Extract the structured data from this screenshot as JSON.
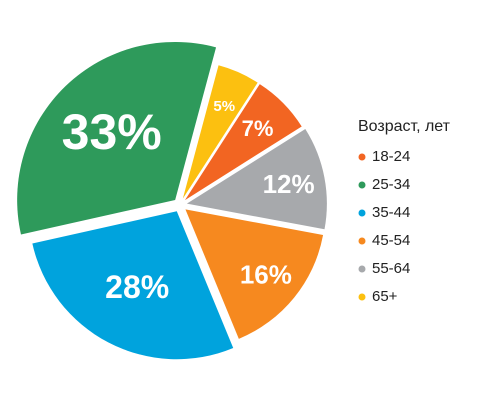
{
  "chart_data": {
    "type": "pie",
    "legend_title": "Возраст, лет",
    "categories": [
      "18-24",
      "25-34",
      "35-44",
      "45-54",
      "55-64",
      "65+"
    ],
    "values": [
      7,
      33,
      28,
      16,
      12,
      5
    ],
    "value_labels": [
      "7%",
      "33%",
      "28%",
      "16%",
      "12%",
      "5%"
    ],
    "colors": [
      "#f26522",
      "#2e9a5b",
      "#00a3dd",
      "#f6891f",
      "#a7a9ac",
      "#fcc010"
    ],
    "legend": "right"
  }
}
